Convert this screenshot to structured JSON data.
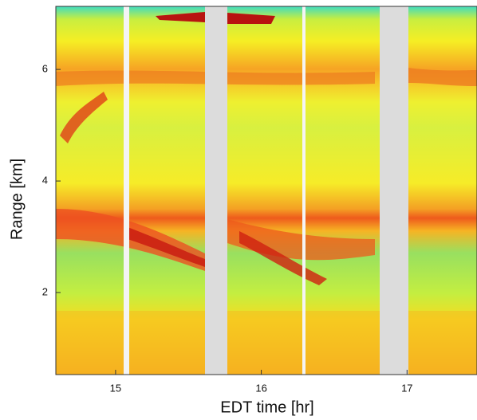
{
  "chart_data": {
    "type": "heatmap",
    "xlabel": "EDT time [hr]",
    "ylabel": "Range [km]",
    "xlim": [
      14.59,
      17.48
    ],
    "xticks": [
      15,
      16,
      17
    ],
    "ylim": [
      0.53,
      7.13
    ],
    "yticks": [
      2,
      4,
      6
    ]
  }
}
